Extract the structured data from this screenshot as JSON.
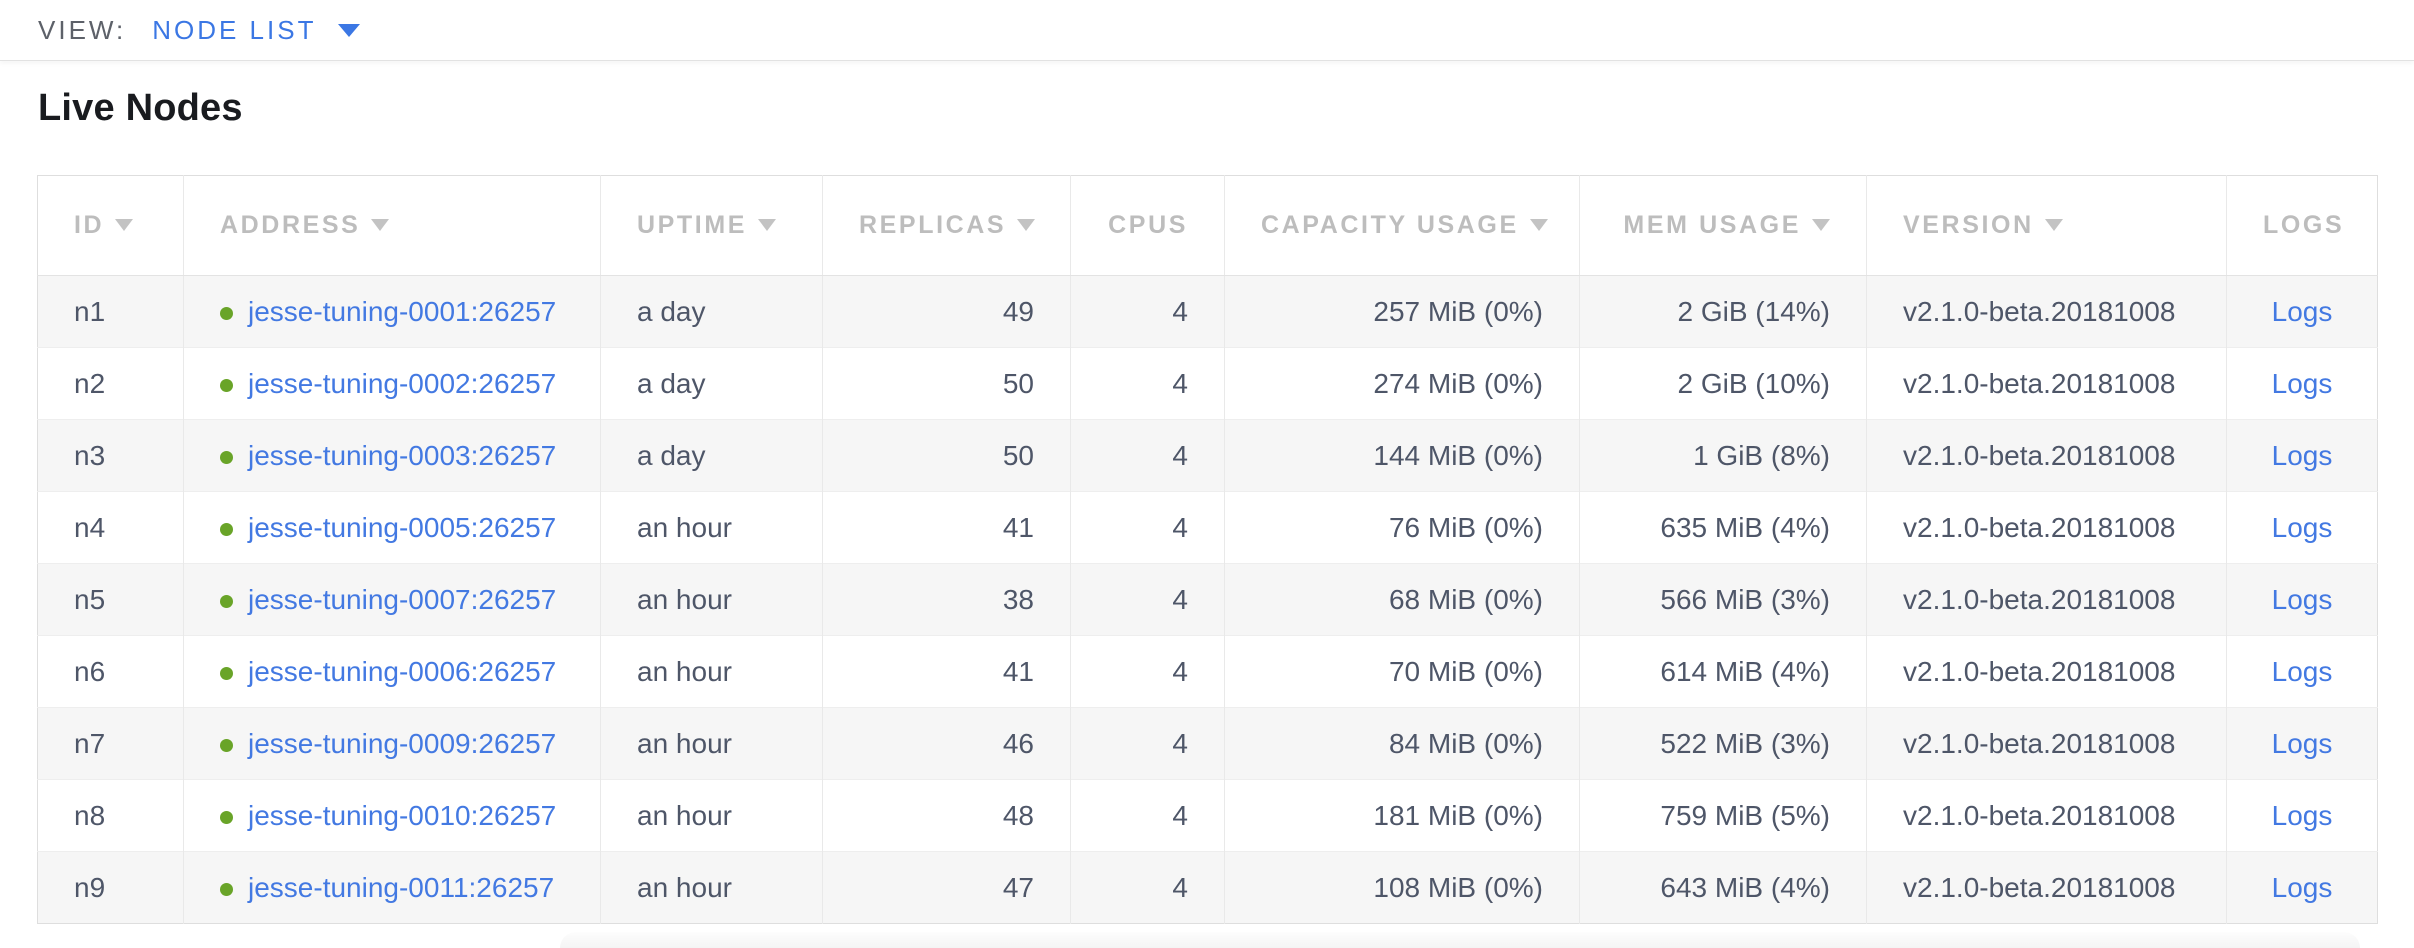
{
  "view_bar": {
    "label": "VIEW:",
    "selected": "NODE LIST"
  },
  "page": {
    "title": "Live Nodes"
  },
  "table": {
    "columns": [
      {
        "key": "id",
        "label": "ID",
        "sortable": true,
        "align": "left"
      },
      {
        "key": "address",
        "label": "ADDRESS",
        "sortable": true,
        "align": "left"
      },
      {
        "key": "uptime",
        "label": "UPTIME",
        "sortable": true,
        "align": "left"
      },
      {
        "key": "replicas",
        "label": "REPLICAS",
        "sortable": true,
        "align": "right"
      },
      {
        "key": "cpus",
        "label": "CPUS",
        "sortable": false,
        "align": "right"
      },
      {
        "key": "capacity",
        "label": "CAPACITY USAGE",
        "sortable": true,
        "align": "right"
      },
      {
        "key": "mem",
        "label": "MEM USAGE",
        "sortable": true,
        "align": "right"
      },
      {
        "key": "version",
        "label": "VERSION",
        "sortable": true,
        "align": "left"
      },
      {
        "key": "logs",
        "label": "LOGS",
        "sortable": false,
        "align": "center"
      }
    ],
    "rows": [
      {
        "id": "n1",
        "address": "jesse-tuning-0001:26257",
        "status": "live",
        "uptime": "a day",
        "replicas": "49",
        "cpus": "4",
        "capacity": "257 MiB (0%)",
        "mem": "2 GiB (14%)",
        "version": "v2.1.0-beta.20181008",
        "logs": "Logs"
      },
      {
        "id": "n2",
        "address": "jesse-tuning-0002:26257",
        "status": "live",
        "uptime": "a day",
        "replicas": "50",
        "cpus": "4",
        "capacity": "274 MiB (0%)",
        "mem": "2 GiB (10%)",
        "version": "v2.1.0-beta.20181008",
        "logs": "Logs"
      },
      {
        "id": "n3",
        "address": "jesse-tuning-0003:26257",
        "status": "live",
        "uptime": "a day",
        "replicas": "50",
        "cpus": "4",
        "capacity": "144 MiB (0%)",
        "mem": "1 GiB (8%)",
        "version": "v2.1.0-beta.20181008",
        "logs": "Logs"
      },
      {
        "id": "n4",
        "address": "jesse-tuning-0005:26257",
        "status": "live",
        "uptime": "an hour",
        "replicas": "41",
        "cpus": "4",
        "capacity": "76 MiB (0%)",
        "mem": "635 MiB (4%)",
        "version": "v2.1.0-beta.20181008",
        "logs": "Logs"
      },
      {
        "id": "n5",
        "address": "jesse-tuning-0007:26257",
        "status": "live",
        "uptime": "an hour",
        "replicas": "38",
        "cpus": "4",
        "capacity": "68 MiB (0%)",
        "mem": "566 MiB (3%)",
        "version": "v2.1.0-beta.20181008",
        "logs": "Logs"
      },
      {
        "id": "n6",
        "address": "jesse-tuning-0006:26257",
        "status": "live",
        "uptime": "an hour",
        "replicas": "41",
        "cpus": "4",
        "capacity": "70 MiB (0%)",
        "mem": "614 MiB (4%)",
        "version": "v2.1.0-beta.20181008",
        "logs": "Logs"
      },
      {
        "id": "n7",
        "address": "jesse-tuning-0009:26257",
        "status": "live",
        "uptime": "an hour",
        "replicas": "46",
        "cpus": "4",
        "capacity": "84 MiB (0%)",
        "mem": "522 MiB (3%)",
        "version": "v2.1.0-beta.20181008",
        "logs": "Logs"
      },
      {
        "id": "n8",
        "address": "jesse-tuning-0010:26257",
        "status": "live",
        "uptime": "an hour",
        "replicas": "48",
        "cpus": "4",
        "capacity": "181 MiB (0%)",
        "mem": "759 MiB (5%)",
        "version": "v2.1.0-beta.20181008",
        "logs": "Logs"
      },
      {
        "id": "n9",
        "address": "jesse-tuning-0011:26257",
        "status": "live",
        "uptime": "an hour",
        "replicas": "47",
        "cpus": "4",
        "capacity": "108 MiB (0%)",
        "mem": "643 MiB (4%)",
        "version": "v2.1.0-beta.20181008",
        "logs": "Logs"
      }
    ]
  },
  "colors": {
    "link_blue": "#4379e2",
    "dropdown_blue": "#3b77e4",
    "live_dot_green": "#69a428",
    "header_gray": "#bdbdbd",
    "cell_text": "#4e5668",
    "row_stripe": "#f6f6f6",
    "border": "#e3e3e3"
  }
}
